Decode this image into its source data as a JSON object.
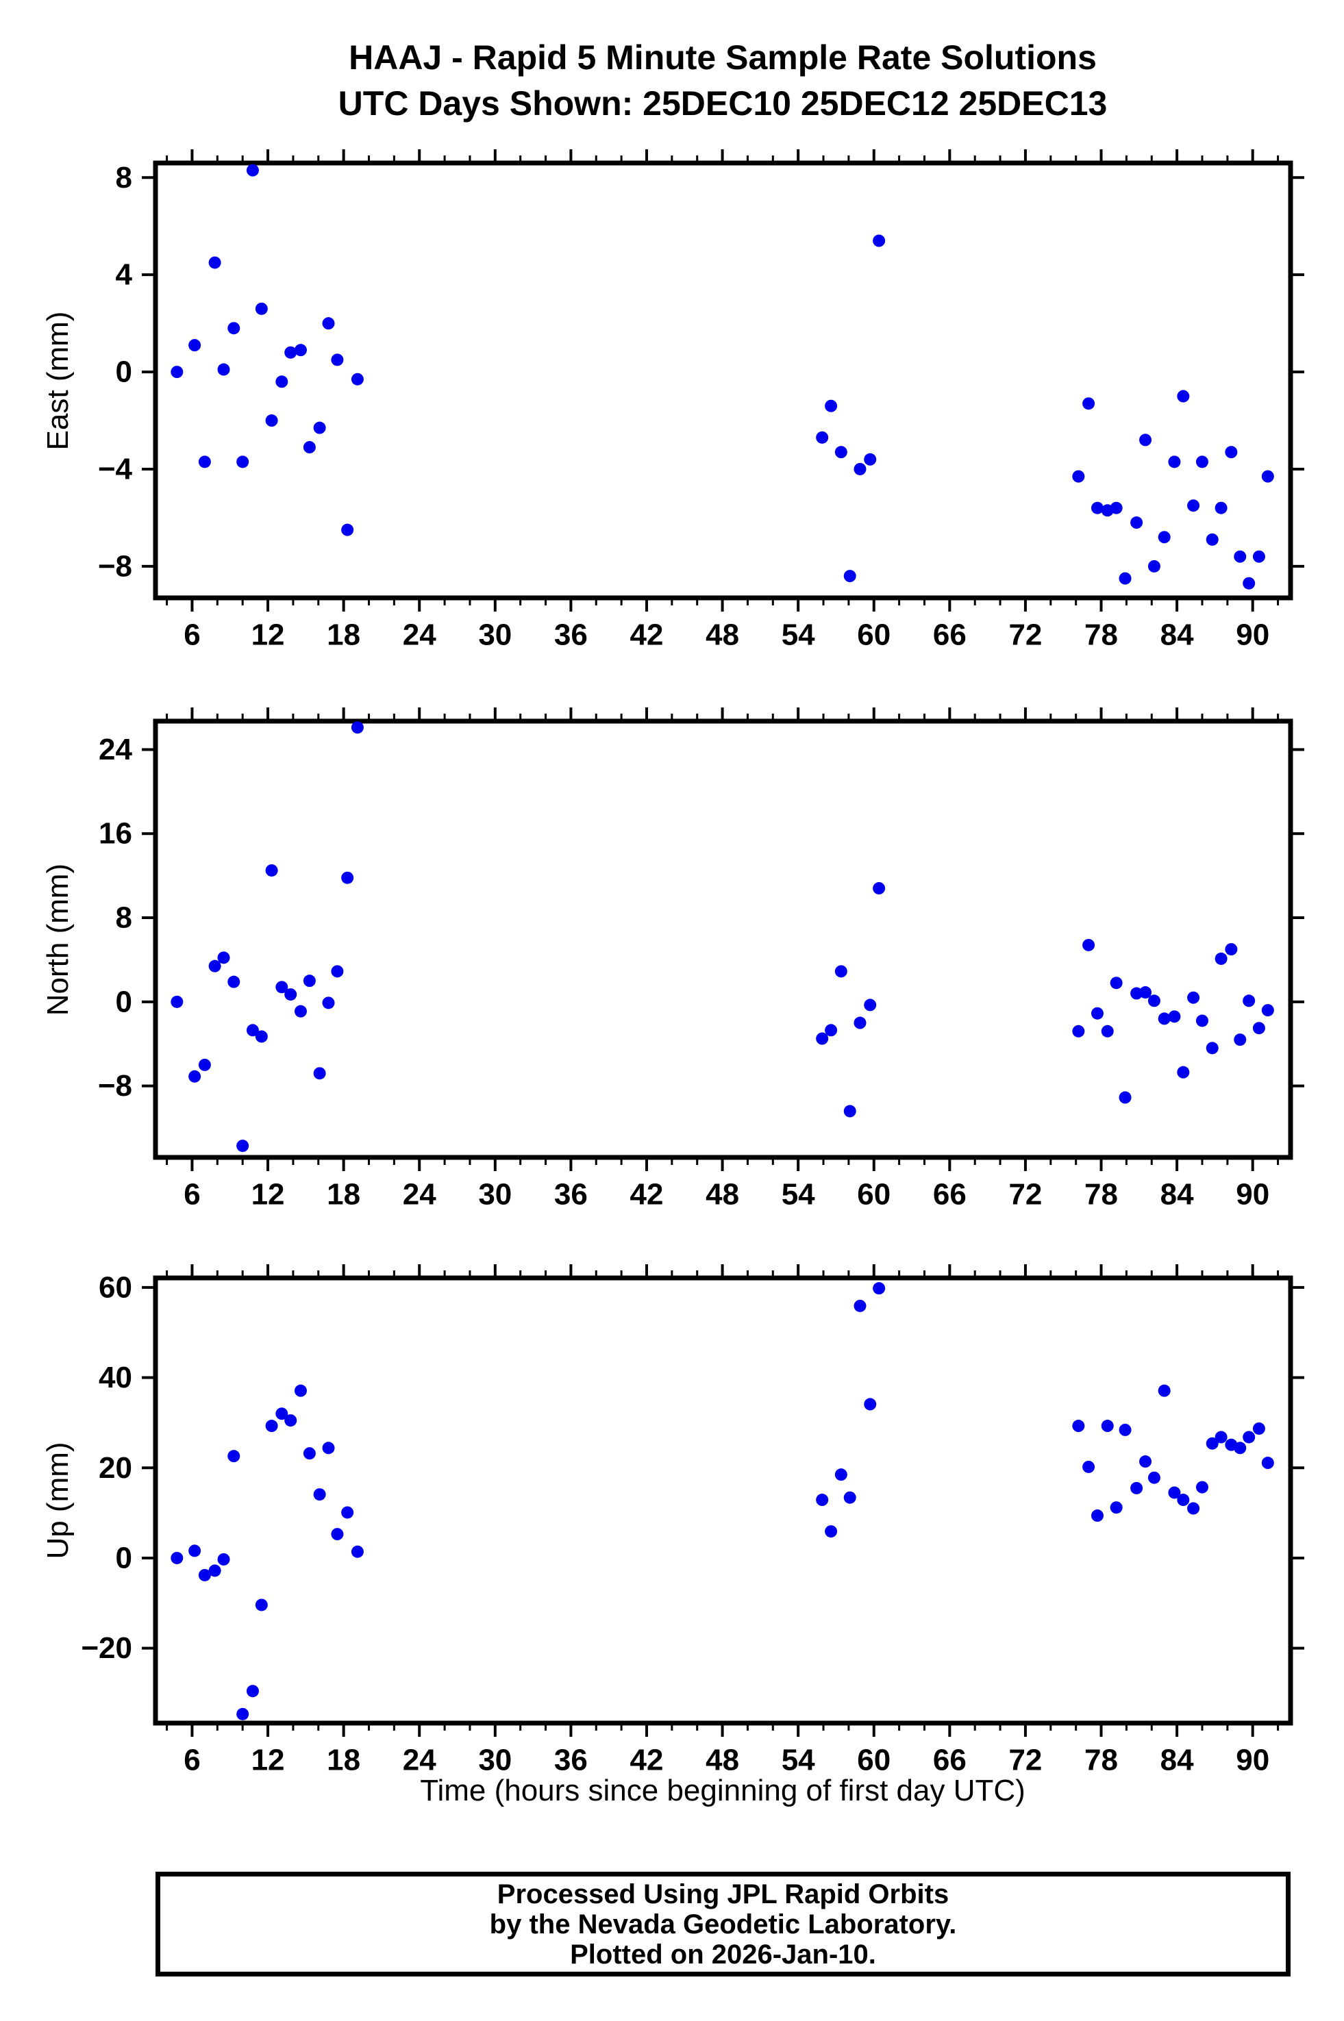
{
  "title": {
    "line1": "HAAJ - Rapid 5 Minute Sample Rate Solutions",
    "line2": "UTC Days Shown:  25DEC10 25DEC12 25DEC13"
  },
  "xlabel": "Time (hours since beginning of first day UTC)",
  "footer": {
    "line1": "Processed Using JPL Rapid Orbits",
    "line2": "by the Nevada Geodetic Laboratory.",
    "line3": "Plotted on 2026-Jan-10."
  },
  "colors": {
    "marker": "#0000EE",
    "axis": "#000000",
    "background": "#FFFFFF"
  },
  "axes": {
    "x": {
      "min": 3.1,
      "max": 93.0,
      "major_ticks": [
        6,
        12,
        18,
        24,
        30,
        36,
        42,
        48,
        54,
        60,
        66,
        72,
        78,
        84,
        90
      ],
      "minor_ticks": [
        4,
        8,
        10,
        14,
        16,
        20,
        22,
        26,
        28,
        32,
        34,
        38,
        40,
        44,
        46,
        50,
        52,
        56,
        58,
        62,
        64,
        68,
        70,
        74,
        76,
        80,
        82,
        86,
        88,
        92
      ]
    }
  },
  "chart_data": [
    {
      "type": "scatter",
      "name": "east",
      "ylabel": "East (mm)",
      "ylim": [
        -9.3,
        8.6
      ],
      "yticks": [
        -8,
        -4,
        0,
        4,
        8
      ],
      "x": [
        4.8,
        6.2,
        7.0,
        7.8,
        8.5,
        9.3,
        10.0,
        10.8,
        11.5,
        12.3,
        13.1,
        13.8,
        14.6,
        15.3,
        16.1,
        16.8,
        17.5,
        18.3,
        19.1,
        55.9,
        56.6,
        57.4,
        58.1,
        58.9,
        59.7,
        60.4,
        76.2,
        77.0,
        77.7,
        78.5,
        79.2,
        79.9,
        80.8,
        81.5,
        82.2,
        83.0,
        83.8,
        84.5,
        85.3,
        86.0,
        86.8,
        87.5,
        88.3,
        89.0,
        89.7,
        90.5,
        91.2
      ],
      "y": [
        0.0,
        1.1,
        -3.7,
        4.5,
        0.1,
        1.8,
        -3.7,
        8.3,
        2.6,
        -2.0,
        -0.4,
        0.8,
        0.9,
        -3.1,
        -2.3,
        2.0,
        0.5,
        -6.5,
        -0.3,
        -2.7,
        -1.4,
        -3.3,
        -8.4,
        -4.0,
        -3.6,
        5.4,
        -4.3,
        -1.3,
        -5.6,
        -5.7,
        -5.6,
        -8.5,
        -6.2,
        -2.8,
        -8.0,
        -6.8,
        -3.7,
        -1.0,
        -5.5,
        -3.7,
        -6.9,
        -5.6,
        -3.3,
        -7.6,
        -8.7,
        -7.6,
        -4.3
      ]
    },
    {
      "type": "scatter",
      "name": "north",
      "ylabel": "North (mm)",
      "ylim": [
        -14.8,
        26.7
      ],
      "yticks": [
        -8,
        0,
        8,
        16,
        24
      ],
      "x": [
        4.8,
        6.2,
        7.0,
        7.8,
        8.5,
        9.3,
        10.0,
        10.8,
        11.5,
        12.3,
        13.1,
        13.8,
        14.6,
        15.3,
        16.1,
        16.8,
        17.5,
        18.3,
        19.1,
        55.9,
        56.6,
        57.4,
        58.1,
        58.9,
        59.7,
        60.4,
        76.2,
        77.0,
        77.7,
        78.5,
        79.2,
        79.9,
        80.8,
        81.5,
        82.2,
        83.0,
        83.8,
        84.5,
        85.3,
        86.0,
        86.8,
        87.5,
        88.3,
        89.0,
        89.7,
        90.5,
        91.2
      ],
      "y": [
        0.0,
        -7.1,
        -6.0,
        3.4,
        4.2,
        1.9,
        -13.7,
        -2.7,
        -3.3,
        12.5,
        1.4,
        0.7,
        -0.9,
        2.0,
        -6.8,
        -0.1,
        2.9,
        11.8,
        26.1,
        -3.5,
        -2.7,
        2.9,
        -10.4,
        -2.0,
        -0.3,
        10.8,
        -2.8,
        5.4,
        -1.1,
        -2.8,
        1.8,
        -9.1,
        0.8,
        0.9,
        0.1,
        -1.6,
        -1.4,
        -6.7,
        0.4,
        -1.8,
        -4.4,
        4.1,
        5.0,
        -3.6,
        0.1,
        -2.5,
        -0.8
      ]
    },
    {
      "type": "scatter",
      "name": "up",
      "ylabel": "Up (mm)",
      "ylim": [
        -36.6,
        62.1
      ],
      "yticks": [
        -20,
        0,
        20,
        40,
        60
      ],
      "x": [
        4.8,
        6.2,
        7.0,
        7.8,
        8.5,
        9.3,
        10.0,
        10.8,
        11.5,
        12.3,
        13.1,
        13.8,
        14.6,
        15.3,
        16.1,
        16.8,
        17.5,
        18.3,
        19.1,
        55.9,
        56.6,
        57.4,
        58.1,
        58.9,
        59.7,
        60.4,
        76.2,
        77.0,
        77.7,
        78.5,
        79.2,
        79.9,
        80.8,
        81.5,
        82.2,
        83.0,
        83.8,
        84.5,
        85.3,
        86.0,
        86.8,
        87.5,
        88.3,
        89.0,
        89.7,
        90.5,
        91.2
      ],
      "y": [
        0.0,
        1.6,
        -3.8,
        -2.8,
        -0.3,
        22.6,
        -34.6,
        -29.5,
        -10.4,
        29.3,
        32.0,
        30.5,
        37.1,
        23.2,
        14.1,
        24.4,
        5.3,
        10.1,
        1.4,
        12.9,
        5.9,
        18.5,
        13.4,
        55.9,
        34.1,
        59.8,
        29.3,
        20.2,
        9.4,
        29.3,
        11.2,
        28.4,
        15.5,
        21.4,
        17.8,
        37.1,
        14.5,
        12.9,
        11.0,
        15.7,
        25.4,
        26.8,
        25.1,
        24.4,
        26.8,
        28.7,
        21.1
      ]
    }
  ]
}
